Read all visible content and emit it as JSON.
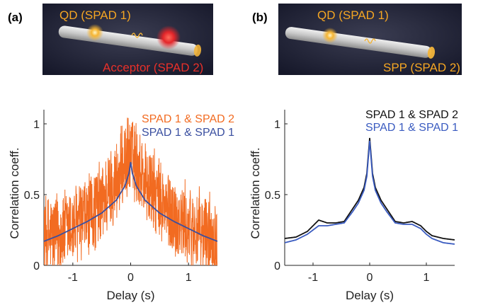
{
  "panels": [
    {
      "letter": "(a)",
      "illustration": {
        "label_top": "QD (SPAD 1)",
        "label_bottom": "Acceptor (SPAD 2)",
        "label_top_color": "#f5a623",
        "label_bottom_color": "#e8302a"
      }
    },
    {
      "letter": "(b)",
      "illustration": {
        "label_top": "QD (SPAD 1)",
        "label_bottom": "SPP (SPAD 2)",
        "label_top_color": "#f5a623",
        "label_bottom_color": "#f5a623"
      }
    }
  ],
  "chart_data": [
    {
      "type": "line",
      "xlabel": "Delay (s)",
      "ylabel": "Correlation coeff.",
      "xlim": [
        -1.5,
        1.5
      ],
      "ylim": [
        0,
        1.1
      ],
      "xticks": [
        -1,
        0,
        1
      ],
      "yticks": [
        0,
        0.5,
        1
      ],
      "xtick_labels": [
        "-1",
        "0",
        "1"
      ],
      "ytick_labels": [
        "0",
        "0.5",
        "1"
      ],
      "legend_position": "top-right",
      "grid": false,
      "series": [
        {
          "name": "SPAD 1 & SPAD 2",
          "color": "#f26b21",
          "style": "noisy",
          "x": [
            -1.5,
            -1.25,
            -1.0,
            -0.75,
            -0.5,
            -0.25,
            -0.1,
            0.0,
            0.1,
            0.25,
            0.5,
            0.75,
            1.0,
            1.25,
            1.5
          ],
          "y": [
            0.2,
            0.22,
            0.27,
            0.33,
            0.45,
            0.6,
            0.72,
            0.78,
            0.72,
            0.6,
            0.45,
            0.33,
            0.27,
            0.22,
            0.2
          ]
        },
        {
          "name": "SPAD 1 & SPAD 1",
          "color": "#3a4fa0",
          "style": "smooth",
          "x": [
            -1.5,
            -1.25,
            -1.0,
            -0.75,
            -0.5,
            -0.25,
            -0.1,
            -0.03,
            0.0,
            0.03,
            0.1,
            0.25,
            0.5,
            0.75,
            1.0,
            1.25,
            1.5
          ],
          "y": [
            0.17,
            0.21,
            0.26,
            0.31,
            0.37,
            0.46,
            0.56,
            0.65,
            0.73,
            0.65,
            0.56,
            0.46,
            0.37,
            0.31,
            0.26,
            0.21,
            0.17
          ]
        }
      ]
    },
    {
      "type": "line",
      "xlabel": "Delay (s)",
      "ylabel": "Correlation coeff.",
      "xlim": [
        -1.5,
        1.5
      ],
      "ylim": [
        0,
        1.1
      ],
      "xticks": [
        -1,
        0,
        1
      ],
      "yticks": [
        0,
        0.5,
        1
      ],
      "xtick_labels": [
        "-1",
        "0",
        "1"
      ],
      "ytick_labels": [
        "0",
        "0.5",
        "1"
      ],
      "legend_position": "top-right",
      "grid": false,
      "series": [
        {
          "name": "SPAD 1 & SPAD 2",
          "color": "#111111",
          "style": "smooth",
          "x": [
            -1.5,
            -1.3,
            -1.1,
            -1.0,
            -0.9,
            -0.75,
            -0.6,
            -0.45,
            -0.3,
            -0.2,
            -0.1,
            -0.05,
            0.0,
            0.05,
            0.1,
            0.2,
            0.3,
            0.45,
            0.6,
            0.75,
            0.9,
            1.0,
            1.1,
            1.3,
            1.5
          ],
          "y": [
            0.19,
            0.2,
            0.24,
            0.28,
            0.32,
            0.3,
            0.3,
            0.31,
            0.4,
            0.46,
            0.55,
            0.65,
            0.9,
            0.65,
            0.55,
            0.46,
            0.4,
            0.31,
            0.3,
            0.31,
            0.28,
            0.24,
            0.21,
            0.19,
            0.18
          ]
        },
        {
          "name": "SPAD 1 & SPAD 1",
          "color": "#3a5bc0",
          "style": "smooth",
          "x": [
            -1.5,
            -1.3,
            -1.1,
            -1.0,
            -0.9,
            -0.75,
            -0.6,
            -0.45,
            -0.3,
            -0.2,
            -0.1,
            -0.05,
            0.0,
            0.05,
            0.1,
            0.2,
            0.3,
            0.45,
            0.6,
            0.75,
            0.9,
            1.0,
            1.1,
            1.3,
            1.5
          ],
          "y": [
            0.16,
            0.18,
            0.22,
            0.25,
            0.28,
            0.28,
            0.29,
            0.3,
            0.38,
            0.44,
            0.53,
            0.63,
            0.88,
            0.63,
            0.53,
            0.44,
            0.38,
            0.3,
            0.29,
            0.29,
            0.26,
            0.22,
            0.19,
            0.16,
            0.15
          ]
        }
      ]
    }
  ]
}
